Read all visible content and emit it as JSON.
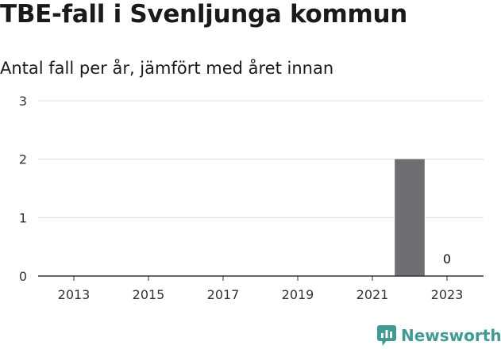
{
  "title": "TBE-fall i Svenljunga kommun",
  "subtitle": "Antal fall per år, jämfört med året innan",
  "brand": {
    "name": "Newsworthy",
    "color": "#3f9b93",
    "icon": "newsworthy-logo-icon"
  },
  "colors": {
    "bar": "#6e6d72",
    "grid": "#dddddd",
    "axis": "#333333",
    "text": "#333333"
  },
  "chart_data": {
    "type": "bar",
    "categories": [
      "2013",
      "2014",
      "2015",
      "2016",
      "2017",
      "2018",
      "2019",
      "2020",
      "2021",
      "2022",
      "2023"
    ],
    "x_tick_labels": [
      "2013",
      "2015",
      "2017",
      "2019",
      "2021",
      "2023"
    ],
    "values": [
      0,
      0,
      0,
      0,
      0,
      0,
      0,
      0,
      0,
      2,
      0
    ],
    "data_labels": [
      {
        "category": "2023",
        "text": "0"
      }
    ],
    "yticks": [
      0,
      1,
      2,
      3
    ],
    "ylim": [
      0,
      3
    ],
    "grid": true,
    "title": "TBE-fall i Svenljunga kommun",
    "subtitle": "Antal fall per år, jämfört med året innan",
    "xlabel": "",
    "ylabel": ""
  }
}
